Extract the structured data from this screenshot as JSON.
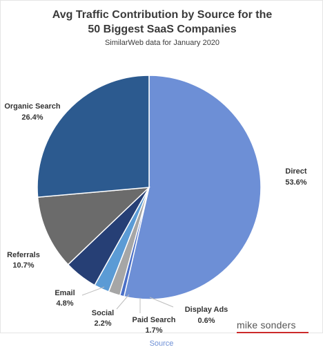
{
  "chart_data": {
    "type": "pie",
    "title_lines": [
      "Avg Traffic Contribution by Source for the",
      "50 Biggest SaaS Companies"
    ],
    "subtitle": "SimilarWeb data for January 2020",
    "slices": [
      {
        "label": "Direct",
        "value": 53.6,
        "value_label": "53.6%",
        "color": "#6d8fd6"
      },
      {
        "label": "Display Ads",
        "value": 0.6,
        "value_label": "0.6%",
        "color": "#4a6fc7"
      },
      {
        "label": "Paid Search",
        "value": 1.7,
        "value_label": "1.7%",
        "color": "#a6a6a6"
      },
      {
        "label": "Social",
        "value": 2.2,
        "value_label": "2.2%",
        "color": "#5b9bd5"
      },
      {
        "label": "Email",
        "value": 4.8,
        "value_label": "4.8%",
        "color": "#263f75"
      },
      {
        "label": "Referrals",
        "value": 10.7,
        "value_label": "10.7%",
        "color": "#6b6b6b"
      },
      {
        "label": "Organic Search",
        "value": 26.4,
        "value_label": "26.4%",
        "color": "#2c5a8f"
      }
    ],
    "start": "12 o'clock",
    "direction": "clockwise"
  },
  "watermark": "mike sonders",
  "footer": {
    "source_link": "Source"
  }
}
